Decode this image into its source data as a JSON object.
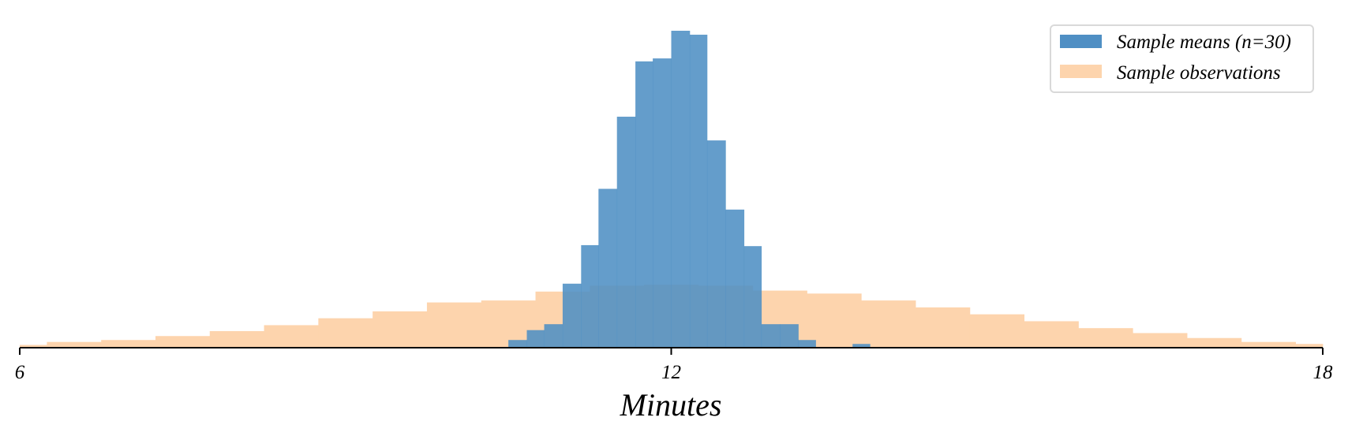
{
  "chart_data": {
    "type": "histogram",
    "xlabel": "Minutes",
    "ylabel": "",
    "xlim": [
      6,
      18
    ],
    "xticks": [
      6,
      12,
      18
    ],
    "yticks_visible": false,
    "grid": false,
    "legend": {
      "placement": "top-right",
      "frame": true
    },
    "colors": {
      "sample_means": "#4f8fc4",
      "sample_observations": "#fdd4ad",
      "overlap": "#5f95b6"
    },
    "series": [
      {
        "name": "Sample means (n=30)",
        "bin_width": 0.167,
        "bins": [
          {
            "x": [
              10.5,
              10.67
            ],
            "count": 7
          },
          {
            "x": [
              10.67,
              10.83
            ],
            "count": 17
          },
          {
            "x": [
              10.83,
              11.0
            ],
            "count": 23
          },
          {
            "x": [
              11.0,
              11.17
            ],
            "count": 64
          },
          {
            "x": [
              11.17,
              11.33
            ],
            "count": 103
          },
          {
            "x": [
              11.33,
              11.5
            ],
            "count": 160
          },
          {
            "x": [
              11.5,
              11.67
            ],
            "count": 233
          },
          {
            "x": [
              11.67,
              11.83
            ],
            "count": 289
          },
          {
            "x": [
              11.83,
              12.0
            ],
            "count": 292
          },
          {
            "x": [
              12.0,
              12.17
            ],
            "count": 320
          },
          {
            "x": [
              12.17,
              12.33
            ],
            "count": 316
          },
          {
            "x": [
              12.33,
              12.5
            ],
            "count": 209
          },
          {
            "x": [
              12.5,
              12.67
            ],
            "count": 139
          },
          {
            "x": [
              12.67,
              12.83
            ],
            "count": 102
          },
          {
            "x": [
              12.83,
              13.0
            ],
            "count": 23
          },
          {
            "x": [
              13.0,
              13.17
            ],
            "count": 23
          },
          {
            "x": [
              13.17,
              13.33
            ],
            "count": 7
          },
          {
            "x": [
              13.33,
              13.5
            ],
            "count": 0
          },
          {
            "x": [
              13.5,
              13.67
            ],
            "count": 0
          },
          {
            "x": [
              13.67,
              13.83
            ],
            "count": 3
          }
        ]
      },
      {
        "name": "Sample observations",
        "bin_width": 0.5,
        "bins": [
          {
            "x": [
              6.0,
              6.25
            ],
            "count": 2
          },
          {
            "x": [
              6.25,
              6.75
            ],
            "count": 5
          },
          {
            "x": [
              6.75,
              7.25
            ],
            "count": 7
          },
          {
            "x": [
              7.25,
              7.75
            ],
            "count": 11
          },
          {
            "x": [
              7.75,
              8.25
            ],
            "count": 16
          },
          {
            "x": [
              8.25,
              8.75
            ],
            "count": 22
          },
          {
            "x": [
              8.75,
              9.25
            ],
            "count": 29
          },
          {
            "x": [
              9.25,
              9.75
            ],
            "count": 36
          },
          {
            "x": [
              9.75,
              10.25
            ],
            "count": 45
          },
          {
            "x": [
              10.25,
              10.75
            ],
            "count": 47
          },
          {
            "x": [
              10.75,
              11.25
            ],
            "count": 56
          },
          {
            "x": [
              11.25,
              11.75
            ],
            "count": 62
          },
          {
            "x": [
              11.75,
              12.25
            ],
            "count": 63
          },
          {
            "x": [
              12.25,
              12.75
            ],
            "count": 62
          },
          {
            "x": [
              12.75,
              13.25
            ],
            "count": 57
          },
          {
            "x": [
              13.25,
              13.75
            ],
            "count": 54
          },
          {
            "x": [
              13.75,
              14.25
            ],
            "count": 47
          },
          {
            "x": [
              14.25,
              14.75
            ],
            "count": 40
          },
          {
            "x": [
              14.75,
              15.25
            ],
            "count": 33
          },
          {
            "x": [
              15.25,
              15.75
            ],
            "count": 26
          },
          {
            "x": [
              15.75,
              16.25
            ],
            "count": 19
          },
          {
            "x": [
              16.25,
              16.75
            ],
            "count": 14
          },
          {
            "x": [
              16.75,
              17.25
            ],
            "count": 9
          },
          {
            "x": [
              17.25,
              17.75
            ],
            "count": 5
          },
          {
            "x": [
              17.75,
              18.0
            ],
            "count": 3
          }
        ]
      }
    ]
  }
}
